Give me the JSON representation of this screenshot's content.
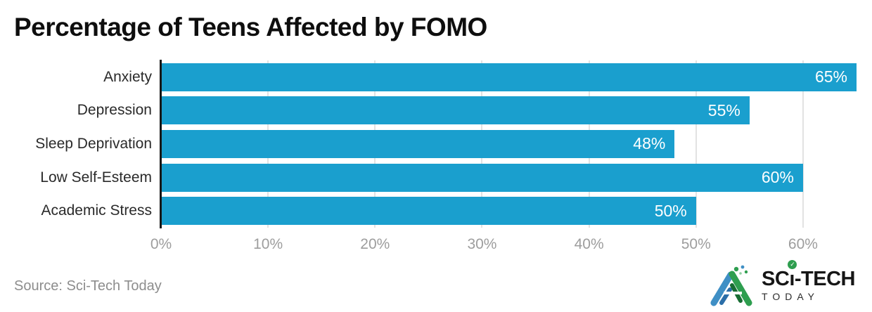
{
  "chart_data": {
    "type": "bar",
    "orientation": "horizontal",
    "title": "Percentage of Teens Affected by FOMO",
    "categories": [
      "Anxiety",
      "Depression",
      "Sleep Deprivation",
      "Low Self-Esteem",
      "Academic Stress"
    ],
    "values": [
      65,
      55,
      48,
      60,
      50
    ],
    "value_labels": [
      "65%",
      "55%",
      "48%",
      "60%",
      "50%"
    ],
    "xlabel": "",
    "ylabel": "",
    "xlim": [
      0,
      65
    ],
    "x_tick_values": [
      0,
      10,
      20,
      30,
      40,
      50,
      60
    ],
    "x_tick_labels": [
      "0%",
      "10%",
      "20%",
      "30%",
      "40%",
      "50%",
      "60%"
    ],
    "grid": "vertical-gridlines-behind-bars",
    "legend": "none",
    "bar_color": "#1a9fce",
    "value_label_color": "#ffffff",
    "gridline_color": "#e2e2e2",
    "tick_label_color": "#9d9d9d",
    "category_label_color": "#2a2a2a",
    "axis_line_color": "#161616"
  },
  "footer": {
    "source": "Source: Sci-Tech Today"
  },
  "logo": {
    "name": "Sci-Tech Today",
    "part1": "SC",
    "part2": "ı",
    "part3": "-TECH",
    "check_glyph": "✓",
    "line2": "TODAY",
    "mark_blue": "#3f8fc5",
    "mark_green": "#2e9e4f"
  }
}
